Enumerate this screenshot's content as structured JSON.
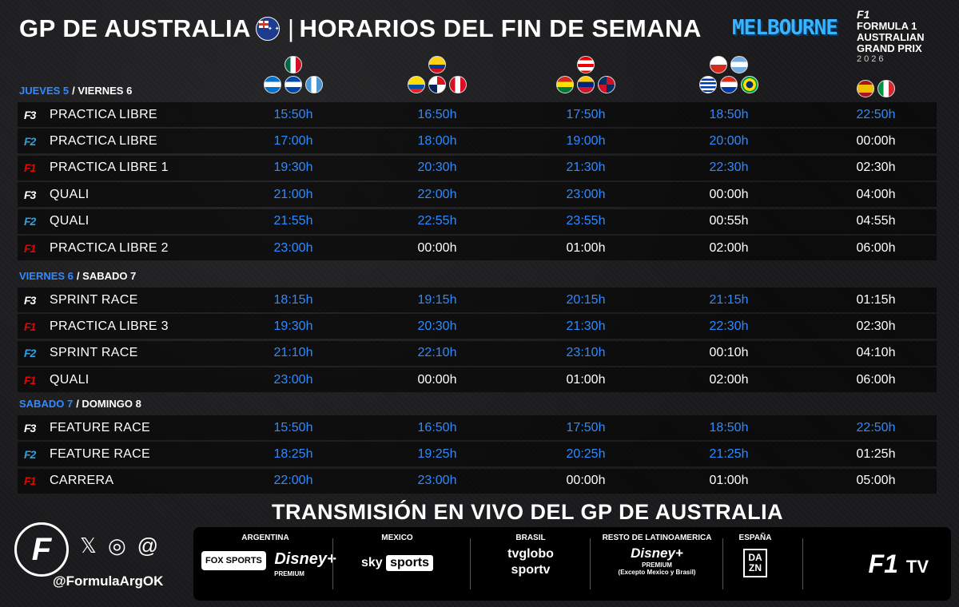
{
  "header": {
    "title_left": "GP DE AUSTRALIA",
    "title_right": "HORARIOS DEL FIN DE SEMANA",
    "city": "MELBOURNE",
    "gp_logo": {
      "f1": "F1",
      "line1": "FORMULA 1",
      "line2": "AUSTRALIAN",
      "line3": "GRAND PRIX",
      "year": "2026"
    }
  },
  "columns": [
    {
      "flags": [
        [
          "mexico"
        ],
        [
          "honduras",
          "el-salvador",
          "guatemala"
        ]
      ]
    },
    {
      "flags": [
        [
          "colombia"
        ],
        [
          "ecuador",
          "panama",
          "peru"
        ]
      ]
    },
    {
      "flags": [
        [
          "puerto-rico"
        ],
        [
          "bolivia",
          "venezuela",
          "dominican-republic"
        ]
      ]
    },
    {
      "flags": [
        [
          "chile",
          "argentina"
        ],
        [
          "uruguay",
          "paraguay",
          "brazil"
        ]
      ]
    },
    {
      "flags": [
        [
          "spain",
          "italy"
        ]
      ]
    }
  ],
  "sections": [
    {
      "day1": "JUEVES 5",
      "day2": "/ VIERNES 6",
      "rows": [
        {
          "series": "F3",
          "session": "PRACTICA LIBRE",
          "times": [
            "15:50h",
            "16:50h",
            "17:50h",
            "18:50h",
            "22:50h"
          ]
        },
        {
          "series": "F2",
          "session": "PRACTICA LIBRE",
          "times": [
            "17:00h",
            "18:00h",
            "19:00h",
            "20:00h",
            "00:00h"
          ]
        },
        {
          "series": "F1",
          "session": "PRACTICA LIBRE 1",
          "times": [
            "19:30h",
            "20:30h",
            "21:30h",
            "22:30h",
            "02:30h"
          ]
        },
        {
          "series": "F3",
          "session": "QUALI",
          "times": [
            "21:00h",
            "22:00h",
            "23:00h",
            "00:00h",
            "04:00h"
          ]
        },
        {
          "series": "F2",
          "session": "QUALI",
          "times": [
            "21:55h",
            "22:55h",
            "23:55h",
            "00:55h",
            "04:55h"
          ]
        },
        {
          "series": "F1",
          "session": "PRACTICA LIBRE 2",
          "times": [
            "23:00h",
            "00:00h",
            "01:00h",
            "02:00h",
            "06:00h"
          ]
        }
      ]
    },
    {
      "day1": "VIERNES 6",
      "day2": "/ SABADO 7",
      "rows": [
        {
          "series": "F3",
          "session": "SPRINT RACE",
          "times": [
            "18:15h",
            "19:15h",
            "20:15h",
            "21:15h",
            "01:15h"
          ]
        },
        {
          "series": "F1",
          "session": "PRACTICA LIBRE 3",
          "times": [
            "19:30h",
            "20:30h",
            "21:30h",
            "22:30h",
            "02:30h"
          ]
        },
        {
          "series": "F2",
          "session": "SPRINT RACE",
          "times": [
            "21:10h",
            "22:10h",
            "23:10h",
            "00:10h",
            "04:10h"
          ]
        },
        {
          "series": "F1",
          "session": "QUALI",
          "times": [
            "23:00h",
            "00:00h",
            "01:00h",
            "02:00h",
            "06:00h"
          ]
        }
      ]
    },
    {
      "day1": "SABADO 7",
      "day2": "/ DOMINGO 8",
      "rows": [
        {
          "series": "F3",
          "session": "FEATURE RACE",
          "times": [
            "15:50h",
            "16:50h",
            "17:50h",
            "18:50h",
            "22:50h"
          ]
        },
        {
          "series": "F2",
          "session": "FEATURE RACE",
          "times": [
            "18:25h",
            "19:25h",
            "20:25h",
            "21:25h",
            "01:25h"
          ]
        },
        {
          "series": "F1",
          "session": "CARRERA",
          "times": [
            "22:00h",
            "23:00h",
            "00:00h",
            "01:00h",
            "05:00h"
          ]
        }
      ]
    }
  ],
  "broadcast": {
    "title": "TRANSMISIÓN EN VIVO DEL GP DE AUSTRALIA",
    "channels": [
      {
        "country": "ARGENTINA",
        "fox": "FOX SPORTS",
        "name": "Disney+",
        "sub": "PREMIUM"
      },
      {
        "country": "MEXICO",
        "sky": "sky",
        "name": "sports"
      },
      {
        "country": "BRASIL",
        "name": "tvglobo",
        "name2": "sportv"
      },
      {
        "country": "RESTO DE LATINOAMERICA",
        "name": "Disney+",
        "sub": "PREMIUM",
        "note": "(Excepto Mexico y Brasil)"
      },
      {
        "country": "ESPAÑA",
        "name1": "DA",
        "name2": "ZN"
      }
    ],
    "f1tv": {
      "logo": "F1",
      "tv": "TV"
    }
  },
  "brand": {
    "logo": "F",
    "handle": "@FormulaArgOK",
    "social": {
      "x": "𝕏",
      "instagram": "◎",
      "threads": "@"
    }
  }
}
